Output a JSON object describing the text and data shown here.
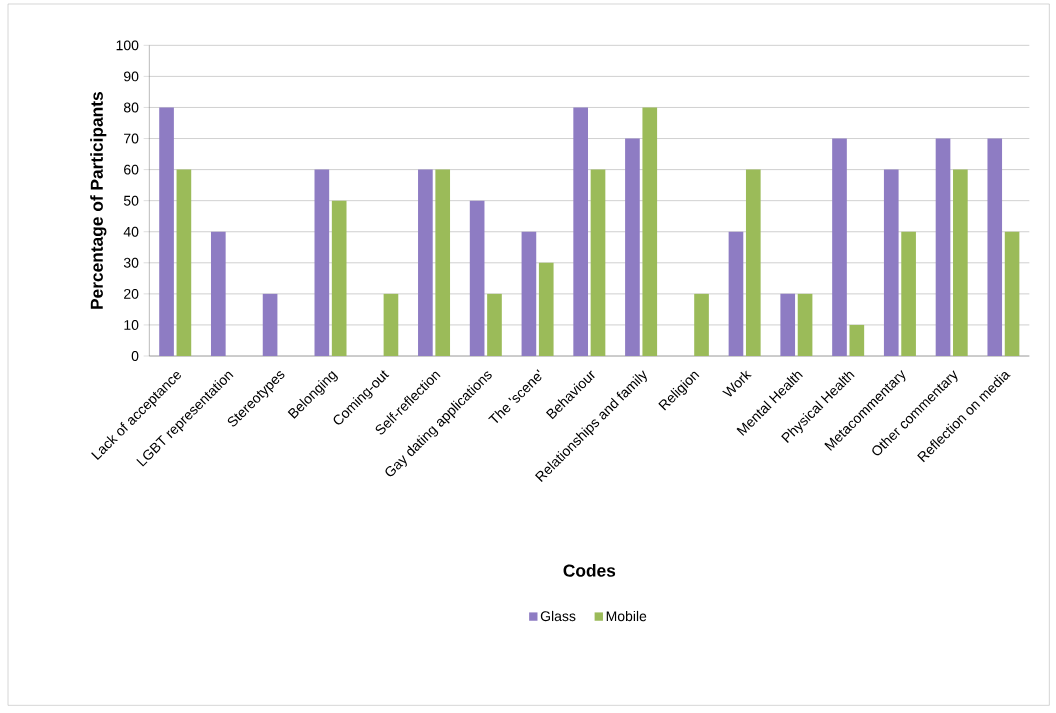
{
  "chart_data": {
    "type": "bar",
    "xlabel": "Codes",
    "ylabel": "Percentage of Participants",
    "categories": [
      "Lack of acceptance",
      "LGBT representation",
      "Stereotypes",
      "Belonging",
      "Coming-out",
      "Self-reflection",
      "Gay dating applications",
      "The 'scene'",
      "Behaviour",
      "Relationships and family",
      "Religion",
      "Work",
      "Mental Health",
      "Physical Health",
      "Metacommentary",
      "Other commentary",
      "Reflection on media"
    ],
    "series": [
      {
        "name": "Glass",
        "color": "#8e7cc3",
        "values": [
          80,
          40,
          20,
          60,
          0,
          60,
          50,
          40,
          80,
          70,
          0,
          40,
          20,
          70,
          60,
          70,
          70
        ]
      },
      {
        "name": "Mobile",
        "color": "#9bbb59",
        "values": [
          60,
          0,
          0,
          50,
          20,
          60,
          20,
          30,
          60,
          80,
          20,
          60,
          20,
          10,
          40,
          60,
          40
        ]
      }
    ],
    "ylim": [
      0,
      100
    ],
    "yticks": [
      0,
      10,
      20,
      30,
      40,
      50,
      60,
      70,
      80,
      90,
      100
    ],
    "grid": "y",
    "legend": "bottom"
  }
}
